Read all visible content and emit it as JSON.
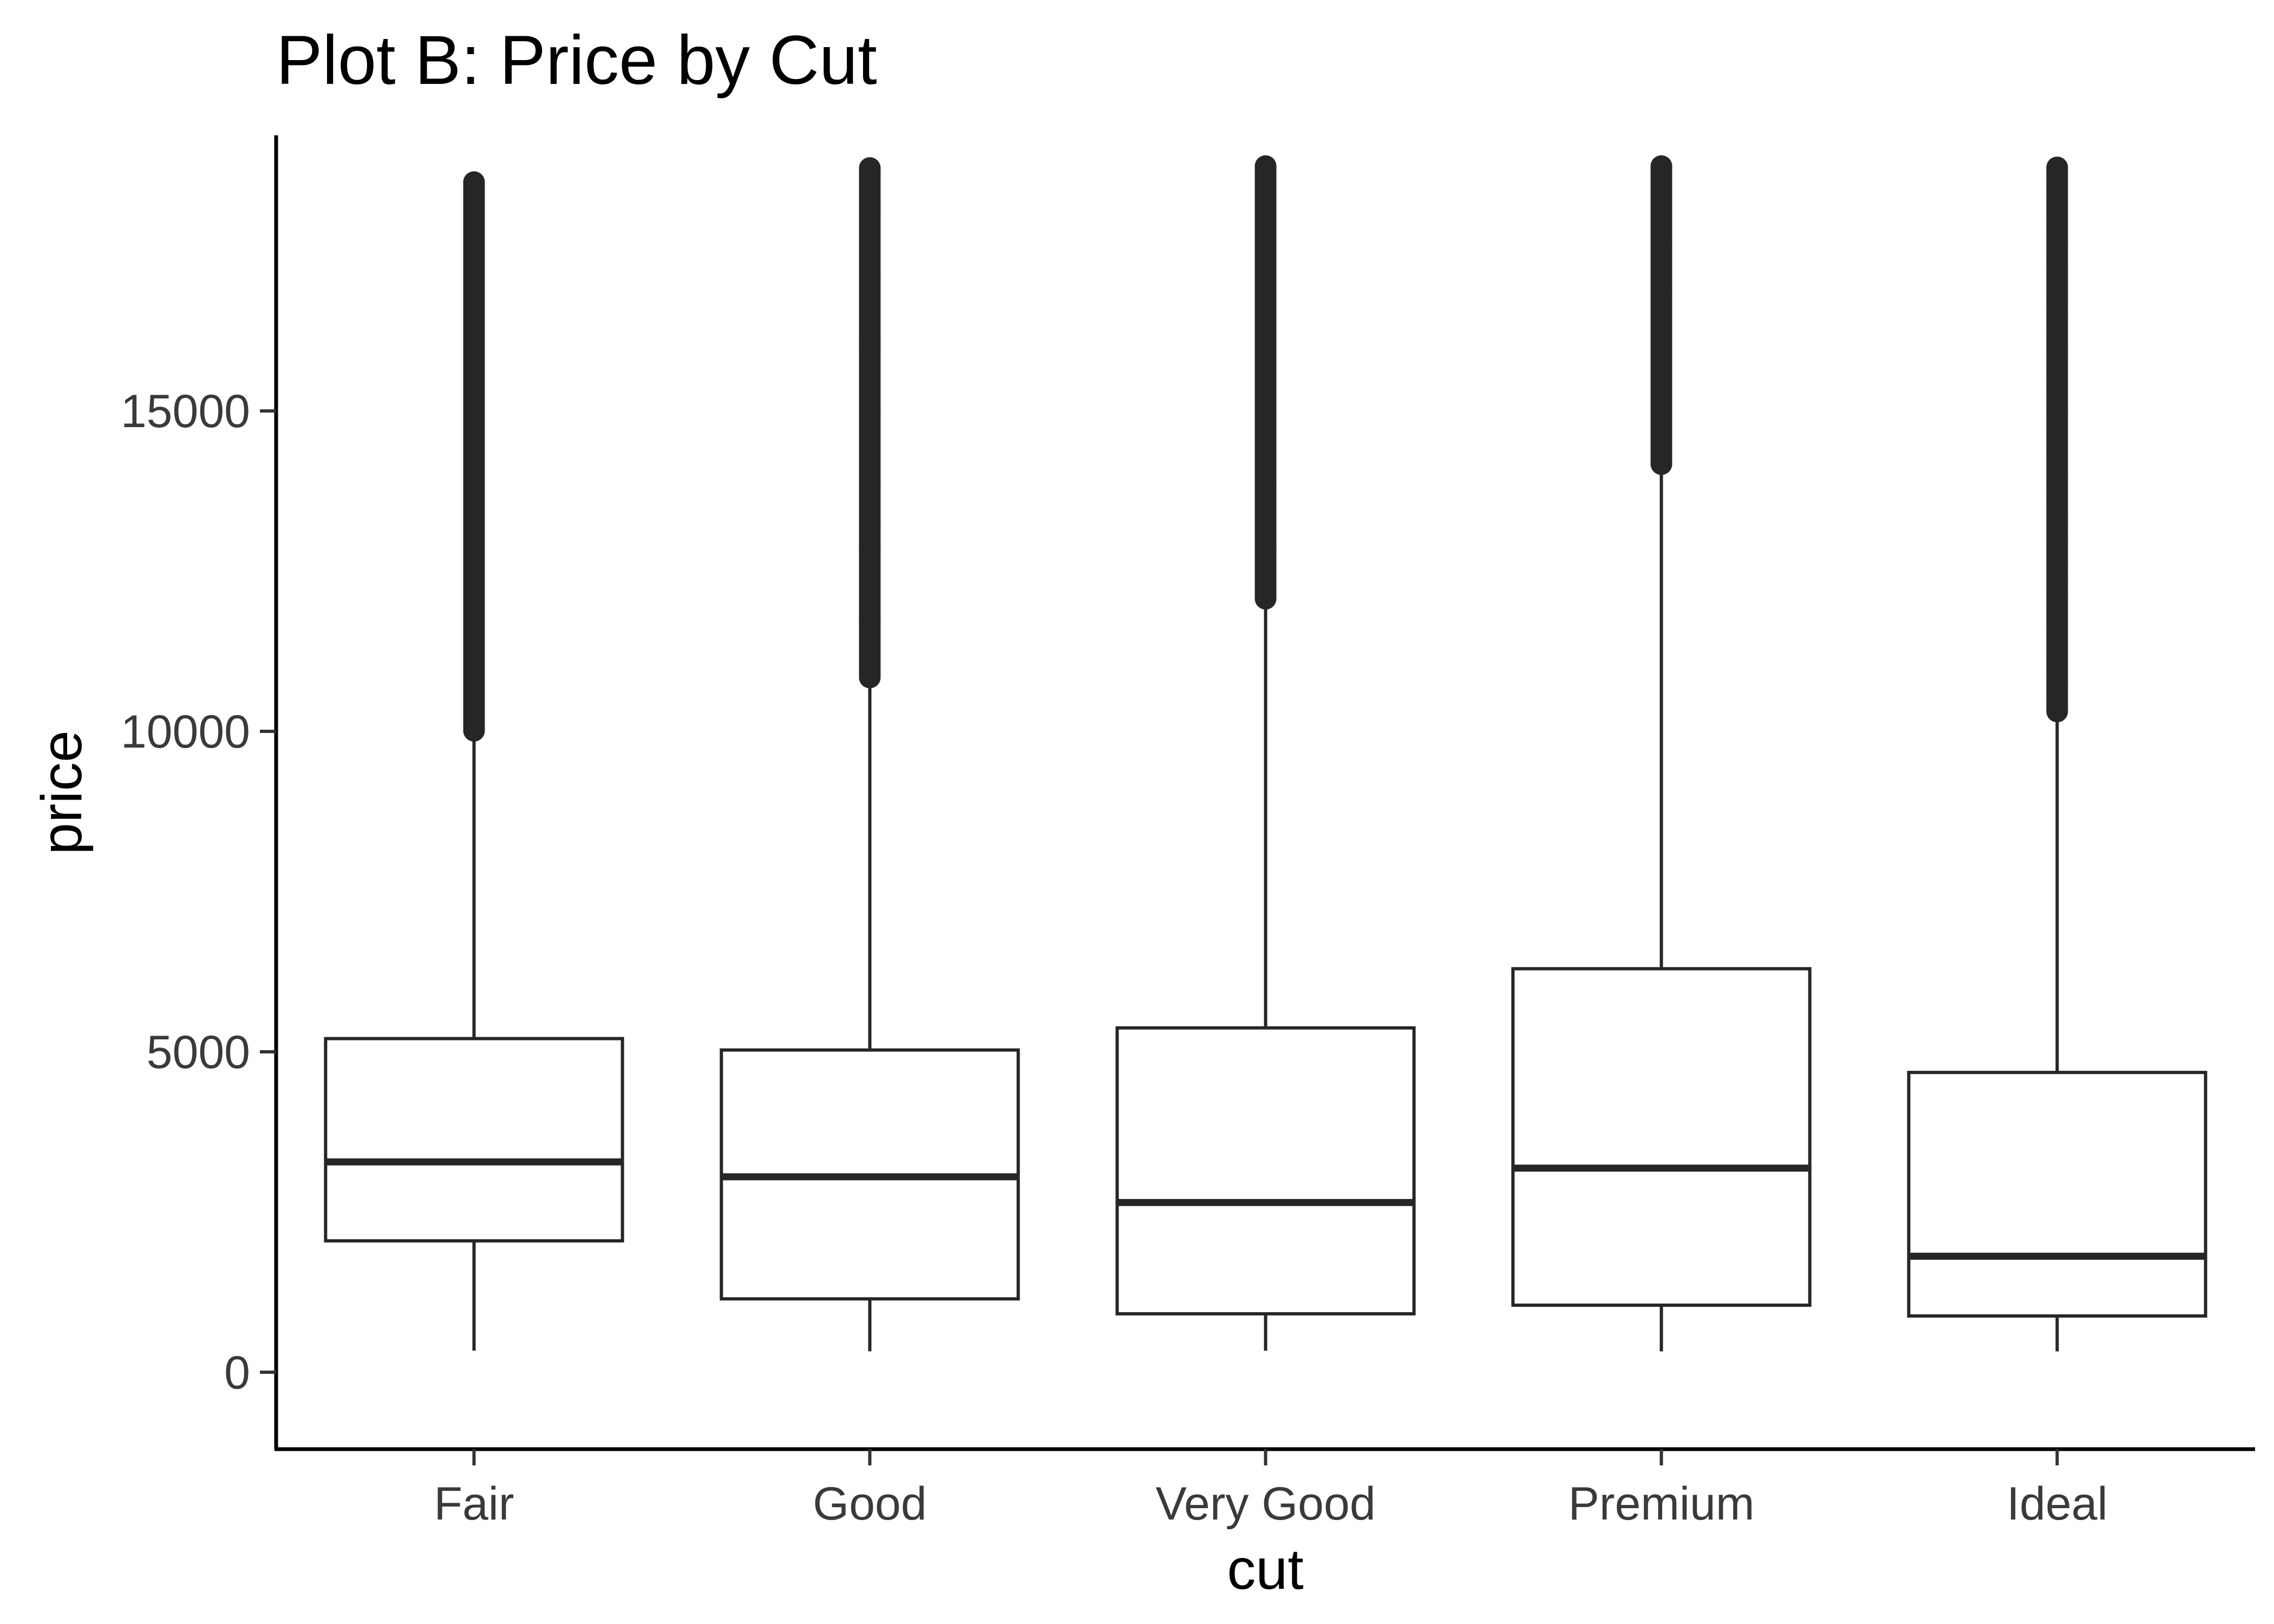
{
  "chart_data": {
    "type": "boxplot",
    "title": "Plot B: Price by Cut",
    "xlabel": "cut",
    "ylabel": "price",
    "ylim": [
      -1200,
      19300
    ],
    "yticks": [
      0,
      5000,
      10000,
      15000
    ],
    "ytick_labels": [
      "0",
      "5000",
      "10000",
      "15000"
    ],
    "grid": false,
    "legend": "none",
    "categories": [
      "Fair",
      "Good",
      "Very Good",
      "Premium",
      "Ideal"
    ],
    "boxes": [
      {
        "category": "Fair",
        "whisker_low": 337,
        "q1": 2050,
        "median": 3282,
        "q3": 5206,
        "whisker_high": 9940,
        "outlier_min": 10010,
        "outlier_max": 18570
      },
      {
        "category": "Good",
        "whisker_low": 327,
        "q1": 1145,
        "median": 3050,
        "q3": 5028,
        "whisker_high": 10830,
        "outlier_min": 10840,
        "outlier_max": 18790
      },
      {
        "category": "Very Good",
        "whisker_low": 336,
        "q1": 912,
        "median": 2648,
        "q3": 5373,
        "whisker_high": 12060,
        "outlier_min": 12070,
        "outlier_max": 18820
      },
      {
        "category": "Premium",
        "whisker_low": 326,
        "q1": 1046,
        "median": 3185,
        "q3": 6296,
        "whisker_high": 14160,
        "outlier_min": 14170,
        "outlier_max": 18820
      },
      {
        "category": "Ideal",
        "whisker_low": 326,
        "q1": 878,
        "median": 1810,
        "q3": 4678,
        "whisker_high": 10300,
        "outlier_min": 10310,
        "outlier_max": 18800
      }
    ],
    "colors": {
      "box_stroke": "#262626",
      "box_fill": "#ffffff",
      "outlier": "#262626"
    }
  }
}
